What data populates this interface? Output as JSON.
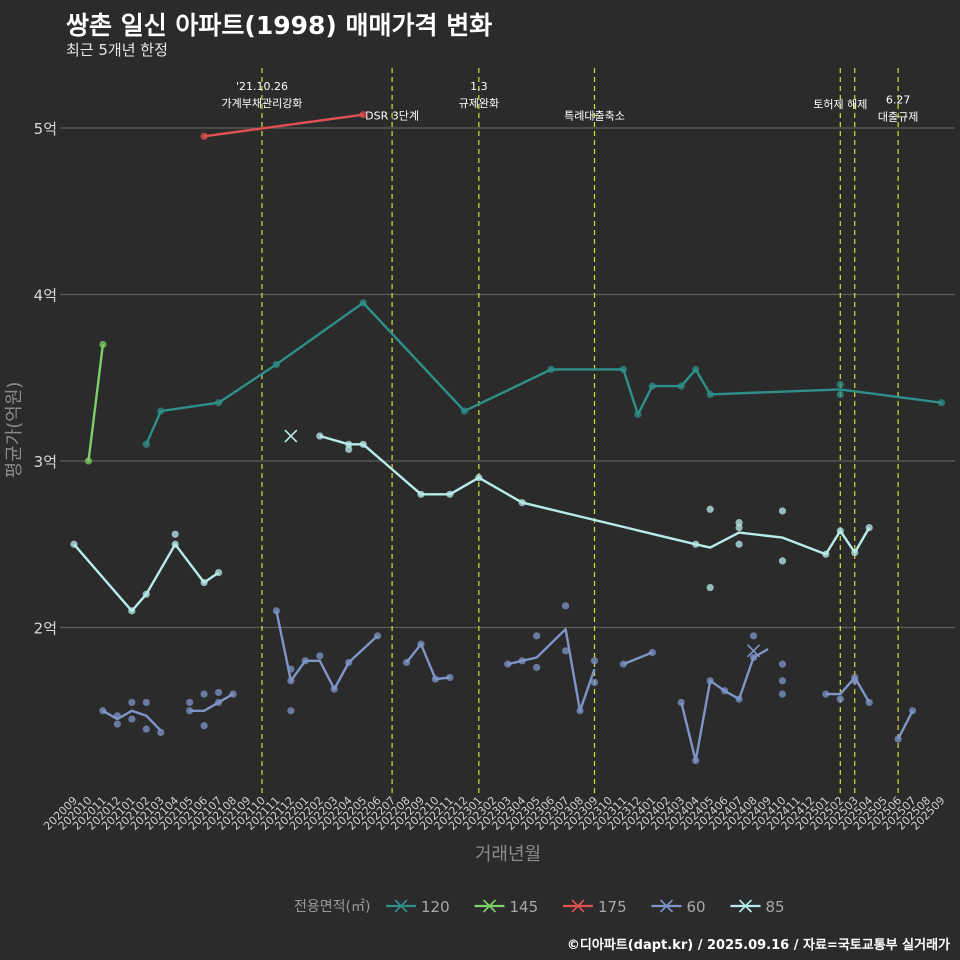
{
  "title": "쌍촌 일신 아파트(1998) 매매가격 변화",
  "subtitle": "최근 5개년 한정",
  "caption": "©디아파트(dapt.kr) / 2025.09.16 / 자료=국토교통부 실거래가",
  "chart_data": {
    "type": "line",
    "xlabel": "거래년월",
    "ylabel": "평균가(억원)",
    "x_start": "202009",
    "x_end": "202509",
    "x_ticks": [
      "202009",
      "202010",
      "202011",
      "202012",
      "202101",
      "202102",
      "202103",
      "202104",
      "202105",
      "202106",
      "202107",
      "202108",
      "202109",
      "202110",
      "202111",
      "202112",
      "202201",
      "202202",
      "202203",
      "202204",
      "202205",
      "202206",
      "202207",
      "202208",
      "202209",
      "202210",
      "202211",
      "202212",
      "202301",
      "202302",
      "202303",
      "202304",
      "202305",
      "202306",
      "202307",
      "202308",
      "202309",
      "202310",
      "202311",
      "202312",
      "202401",
      "202402",
      "202403",
      "202404",
      "202405",
      "202406",
      "202407",
      "202408",
      "202409",
      "202410",
      "202411",
      "202412",
      "202501",
      "202502",
      "202503",
      "202504",
      "202505",
      "202506",
      "202507",
      "202508",
      "202509"
    ],
    "ylim": [
      1,
      5.4
    ],
    "y_ticks": [
      {
        "value": 2,
        "label": "2억"
      },
      {
        "value": 3,
        "label": "3억"
      },
      {
        "value": 4,
        "label": "4억"
      },
      {
        "value": 5,
        "label": "5억"
      }
    ],
    "grid": true,
    "legend": {
      "title": "전용면적(㎡)",
      "position": "bottom"
    },
    "vlines": [
      {
        "x": 13.0,
        "label": "'21.10.26\n가계부채관리강화",
        "label_y": 5.18
      },
      {
        "x": 22.0,
        "label": "DSR 3단계",
        "label_y": 5.05
      },
      {
        "x": 28.0,
        "label": "1.3\n규제완화",
        "label_y": 5.18
      },
      {
        "x": 36.0,
        "label": "특례대출축소",
        "label_y": 5.05
      },
      {
        "x": 53.0,
        "label": "토허제 해제",
        "label_y": 5.12
      },
      {
        "x": 54.0,
        "label": "",
        "label_y": 5.12
      },
      {
        "x": 57.0,
        "label": "6.27\n대출규제",
        "label_y": 5.1
      }
    ],
    "series": [
      {
        "name": "120",
        "color": "#2f8f8a",
        "line": [
          [
            5,
            3.1
          ],
          [
            6,
            3.3
          ],
          [
            10,
            3.35
          ],
          [
            14,
            3.58
          ],
          [
            20,
            3.95
          ],
          [
            27,
            3.3
          ],
          [
            33,
            3.55
          ],
          [
            38,
            3.55
          ],
          [
            39,
            3.28
          ],
          [
            40,
            3.45
          ],
          [
            42,
            3.45
          ],
          [
            43,
            3.55
          ],
          [
            44,
            3.4
          ],
          [
            53,
            3.43
          ],
          [
            60,
            3.35
          ]
        ],
        "points": [
          [
            5,
            3.1
          ],
          [
            6,
            3.3
          ],
          [
            10,
            3.35
          ],
          [
            14,
            3.58
          ],
          [
            20,
            3.95
          ],
          [
            27,
            3.3
          ],
          [
            33,
            3.55
          ],
          [
            38,
            3.55
          ],
          [
            39,
            3.28
          ],
          [
            40,
            3.45
          ],
          [
            42,
            3.45
          ],
          [
            43,
            3.55
          ],
          [
            44,
            3.4
          ],
          [
            53,
            3.46
          ],
          [
            53,
            3.4
          ],
          [
            60,
            3.35
          ]
        ]
      },
      {
        "name": "145",
        "color": "#7ed06a",
        "line": [
          [
            1,
            3.0
          ],
          [
            2,
            3.7
          ]
        ],
        "points": [
          [
            1,
            3.0
          ],
          [
            2,
            3.7
          ]
        ]
      },
      {
        "name": "175",
        "color": "#e05050",
        "line": [
          [
            9,
            4.95
          ],
          [
            20,
            5.08
          ]
        ],
        "points": [
          [
            9,
            4.95
          ],
          [
            20,
            5.08
          ]
        ]
      },
      {
        "name": "60",
        "color": "#7f95c8",
        "line": [
          [
            2,
            1.5
          ],
          [
            3,
            1.45
          ],
          [
            4,
            1.5
          ],
          [
            5,
            1.47
          ],
          [
            6,
            1.38
          ],
          [
            null,
            null
          ],
          [
            8,
            1.5
          ],
          [
            9,
            1.5
          ],
          [
            10,
            1.55
          ],
          [
            11,
            1.6
          ],
          [
            null,
            null
          ],
          [
            14,
            2.1
          ],
          [
            15,
            1.68
          ],
          [
            16,
            1.8
          ],
          [
            17,
            1.8
          ],
          [
            18,
            1.63
          ],
          [
            19,
            1.79
          ],
          [
            21,
            1.95
          ],
          [
            null,
            null
          ],
          [
            23,
            1.79
          ],
          [
            24,
            1.9
          ],
          [
            25,
            1.69
          ],
          [
            26,
            1.7
          ],
          [
            null,
            null
          ],
          [
            30,
            1.78
          ],
          [
            31,
            1.8
          ],
          [
            32,
            1.82
          ],
          [
            34,
            1.99
          ],
          [
            35,
            1.5
          ],
          [
            36,
            1.75
          ],
          [
            null,
            null
          ],
          [
            38,
            1.78
          ],
          [
            40,
            1.85
          ],
          [
            null,
            null
          ],
          [
            42,
            1.55
          ],
          [
            43,
            1.2
          ],
          [
            44,
            1.68
          ],
          [
            45,
            1.62
          ],
          [
            46,
            1.57
          ],
          [
            47,
            1.82
          ],
          [
            48,
            1.87
          ],
          [
            null,
            null
          ],
          [
            52,
            1.6
          ],
          [
            53,
            1.6
          ],
          [
            54,
            1.7
          ],
          [
            55,
            1.55
          ],
          [
            null,
            null
          ],
          [
            57,
            1.33
          ],
          [
            58,
            1.5
          ]
        ],
        "points": [
          [
            2,
            1.5
          ],
          [
            3,
            1.42
          ],
          [
            3,
            1.47
          ],
          [
            4,
            1.45
          ],
          [
            4,
            1.55
          ],
          [
            5,
            1.55
          ],
          [
            5,
            1.39
          ],
          [
            6,
            1.37
          ],
          [
            8,
            1.5
          ],
          [
            8,
            1.55
          ],
          [
            9,
            1.6
          ],
          [
            9,
            1.41
          ],
          [
            10,
            1.61
          ],
          [
            10,
            1.55
          ],
          [
            11,
            1.6
          ],
          [
            14,
            2.1
          ],
          [
            15,
            1.75
          ],
          [
            15,
            1.5
          ],
          [
            15,
            1.68
          ],
          [
            16,
            1.8
          ],
          [
            17,
            1.83
          ],
          [
            18,
            1.63
          ],
          [
            19,
            1.79
          ],
          [
            21,
            1.95
          ],
          [
            23,
            1.79
          ],
          [
            24,
            1.9
          ],
          [
            25,
            1.69
          ],
          [
            26,
            1.7
          ],
          [
            30,
            1.78
          ],
          [
            31,
            1.8
          ],
          [
            32,
            1.95
          ],
          [
            32,
            1.76
          ],
          [
            34,
            2.13
          ],
          [
            34,
            1.86
          ],
          [
            35,
            1.5
          ],
          [
            36,
            1.8
          ],
          [
            36,
            1.67
          ],
          [
            38,
            1.78
          ],
          [
            40,
            1.85
          ],
          [
            42,
            1.55
          ],
          [
            43,
            1.2
          ],
          [
            44,
            1.68
          ],
          [
            45,
            1.62
          ],
          [
            46,
            1.57
          ],
          [
            47,
            1.95
          ],
          [
            47,
            1.82
          ],
          [
            49,
            1.78
          ],
          [
            49,
            1.68
          ],
          [
            49,
            1.6
          ],
          [
            52,
            1.6
          ],
          [
            53,
            1.57
          ],
          [
            54,
            1.7
          ],
          [
            54,
            1.68
          ],
          [
            55,
            1.55
          ],
          [
            57,
            1.33
          ],
          [
            58,
            1.5
          ]
        ]
      },
      {
        "name": "85",
        "color": "#b8ecea",
        "line": [
          [
            0,
            2.5
          ],
          [
            4,
            2.1
          ],
          [
            5,
            2.2
          ],
          [
            7,
            2.5
          ],
          [
            9,
            2.27
          ],
          [
            10,
            2.33
          ],
          [
            null,
            null
          ],
          [
            17,
            3.15
          ],
          [
            19,
            3.1
          ],
          [
            20,
            3.1
          ],
          [
            24,
            2.8
          ],
          [
            26,
            2.8
          ],
          [
            28,
            2.9
          ],
          [
            31,
            2.75
          ],
          [
            43,
            2.5
          ],
          [
            44,
            2.48
          ],
          [
            46,
            2.57
          ],
          [
            49,
            2.54
          ],
          [
            52,
            2.44
          ],
          [
            53,
            2.58
          ],
          [
            54,
            2.45
          ],
          [
            55,
            2.6
          ]
        ],
        "points": [
          [
            0,
            2.5
          ],
          [
            4,
            2.1
          ],
          [
            5,
            2.2
          ],
          [
            7,
            2.56
          ],
          [
            7,
            2.5
          ],
          [
            9,
            2.27
          ],
          [
            10,
            2.33
          ],
          [
            17,
            3.15
          ],
          [
            19,
            3.1
          ],
          [
            19,
            3.07
          ],
          [
            20,
            3.1
          ],
          [
            24,
            2.8
          ],
          [
            26,
            2.8
          ],
          [
            28,
            2.9
          ],
          [
            31,
            2.75
          ],
          [
            43,
            2.5
          ],
          [
            44,
            2.71
          ],
          [
            44,
            2.24
          ],
          [
            46,
            2.63
          ],
          [
            46,
            2.6
          ],
          [
            46,
            2.5
          ],
          [
            49,
            2.7
          ],
          [
            49,
            2.4
          ],
          [
            52,
            2.44
          ],
          [
            53,
            2.58
          ],
          [
            54,
            2.45
          ],
          [
            55,
            2.6
          ]
        ]
      }
    ],
    "cross_markers": [
      {
        "series": "85",
        "x": 15,
        "y": 3.15
      },
      {
        "series": "60",
        "x": 47,
        "y": 1.86
      }
    ]
  }
}
